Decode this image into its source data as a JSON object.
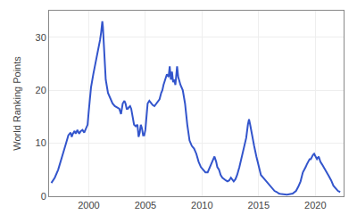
{
  "chart_data": {
    "type": "line",
    "ylabel": "World Ranking Points",
    "x": [
      1996.7,
      1997.0,
      1997.3,
      1997.6,
      1997.9,
      1998.0,
      1998.2,
      1998.4,
      1998.5,
      1998.6,
      1998.75,
      1998.85,
      1999.0,
      1999.15,
      1999.3,
      1999.45,
      1999.6,
      1999.75,
      1999.9,
      2000.0,
      2000.2,
      2000.4,
      2000.6,
      2000.8,
      2001.0,
      2001.1,
      2001.2,
      2001.25,
      2001.35,
      2001.5,
      2001.7,
      2001.9,
      2002.1,
      2002.3,
      2002.5,
      2002.7,
      2002.85,
      2003.0,
      2003.15,
      2003.25,
      2003.35,
      2003.45,
      2003.55,
      2003.65,
      2003.75,
      2003.85,
      2004.0,
      2004.15,
      2004.3,
      2004.4,
      2004.5,
      2004.6,
      2004.7,
      2004.8,
      2004.9,
      2005.0,
      2005.1,
      2005.2,
      2005.35,
      2005.5,
      2005.65,
      2005.8,
      2005.95,
      2006.1,
      2006.25,
      2006.4,
      2006.5,
      2006.6,
      2006.75,
      2006.9,
      2007.05,
      2007.15,
      2007.25,
      2007.35,
      2007.45,
      2007.55,
      2007.65,
      2007.8,
      2007.9,
      2008.0,
      2008.1,
      2008.3,
      2008.5,
      2008.7,
      2008.9,
      2009.1,
      2009.3,
      2009.5,
      2009.7,
      2009.9,
      2010.1,
      2010.3,
      2010.5,
      2010.7,
      2010.9,
      2011.1,
      2011.25,
      2011.35,
      2011.5,
      2011.65,
      2011.8,
      2011.95,
      2012.1,
      2012.25,
      2012.4,
      2012.55,
      2012.65,
      2012.8,
      2012.95,
      2013.1,
      2013.3,
      2013.5,
      2013.7,
      2013.9,
      2014.05,
      2014.15,
      2014.25,
      2014.4,
      2014.6,
      2014.8,
      2015.0,
      2015.2,
      2015.4,
      2015.6,
      2015.8,
      2016.0,
      2016.2,
      2016.4,
      2016.6,
      2016.8,
      2017.0,
      2017.5,
      2018.0,
      2018.3,
      2018.5,
      2018.7,
      2018.9,
      2019.05,
      2019.15,
      2019.25,
      2019.4,
      2019.5,
      2019.6,
      2019.7,
      2019.8,
      2019.9,
      2020.0,
      2020.15,
      2020.3,
      2020.45,
      2020.6,
      2020.75,
      2020.9,
      2021.05,
      2021.2,
      2021.4,
      2021.6,
      2021.8,
      2022.0,
      2022.2
    ],
    "values": [
      2.5,
      3.5,
      5.0,
      7.0,
      9.0,
      10.0,
      11.5,
      12.0,
      11.2,
      11.8,
      12.3,
      11.8,
      12.5,
      11.8,
      12.3,
      12.5,
      12.0,
      12.8,
      13.5,
      16.0,
      20.5,
      23.0,
      25.0,
      27.5,
      29.5,
      31.0,
      33.0,
      32.0,
      28.0,
      22.0,
      19.5,
      18.5,
      17.5,
      17.0,
      16.8,
      16.5,
      15.5,
      17.5,
      18.0,
      17.5,
      16.5,
      16.5,
      16.8,
      17.0,
      16.5,
      15.5,
      13.5,
      13.2,
      13.5,
      11.2,
      12.0,
      13.5,
      12.8,
      11.5,
      11.5,
      12.5,
      15.0,
      17.5,
      18.0,
      17.5,
      17.2,
      17.0,
      17.5,
      18.0,
      18.3,
      19.5,
      20.0,
      21.0,
      22.0,
      23.0,
      22.5,
      24.5,
      22.0,
      23.5,
      21.5,
      22.0,
      21.0,
      24.5,
      22.5,
      21.5,
      21.0,
      20.0,
      17.5,
      13.5,
      10.5,
      9.5,
      9.0,
      8.0,
      6.5,
      5.5,
      5.0,
      4.5,
      4.5,
      5.5,
      6.5,
      7.5,
      6.5,
      5.5,
      5.0,
      4.0,
      3.5,
      3.2,
      3.0,
      2.8,
      3.0,
      3.5,
      3.2,
      2.8,
      3.2,
      4.0,
      5.5,
      7.5,
      9.5,
      11.0,
      13.5,
      14.5,
      13.5,
      11.5,
      9.5,
      7.5,
      5.5,
      4.0,
      3.5,
      3.0,
      2.5,
      2.0,
      1.5,
      1.0,
      0.8,
      0.5,
      0.4,
      0.3,
      0.5,
      1.0,
      1.8,
      2.8,
      4.5,
      5.0,
      5.5,
      6.0,
      6.5,
      7.0,
      7.0,
      7.5,
      7.8,
      8.0,
      7.5,
      7.0,
      7.5,
      6.5,
      6.0,
      5.5,
      5.0,
      4.5,
      3.8,
      3.0,
      2.0,
      1.5,
      1.0,
      0.8
    ],
    "color": "#3355cc",
    "xlim": [
      1996.5,
      2022.5
    ],
    "ylim": [
      0,
      35
    ],
    "xticks": [
      2000,
      2005,
      2010,
      2015,
      2020
    ],
    "yticks": [
      0,
      10,
      20,
      30
    ],
    "grid": true
  }
}
